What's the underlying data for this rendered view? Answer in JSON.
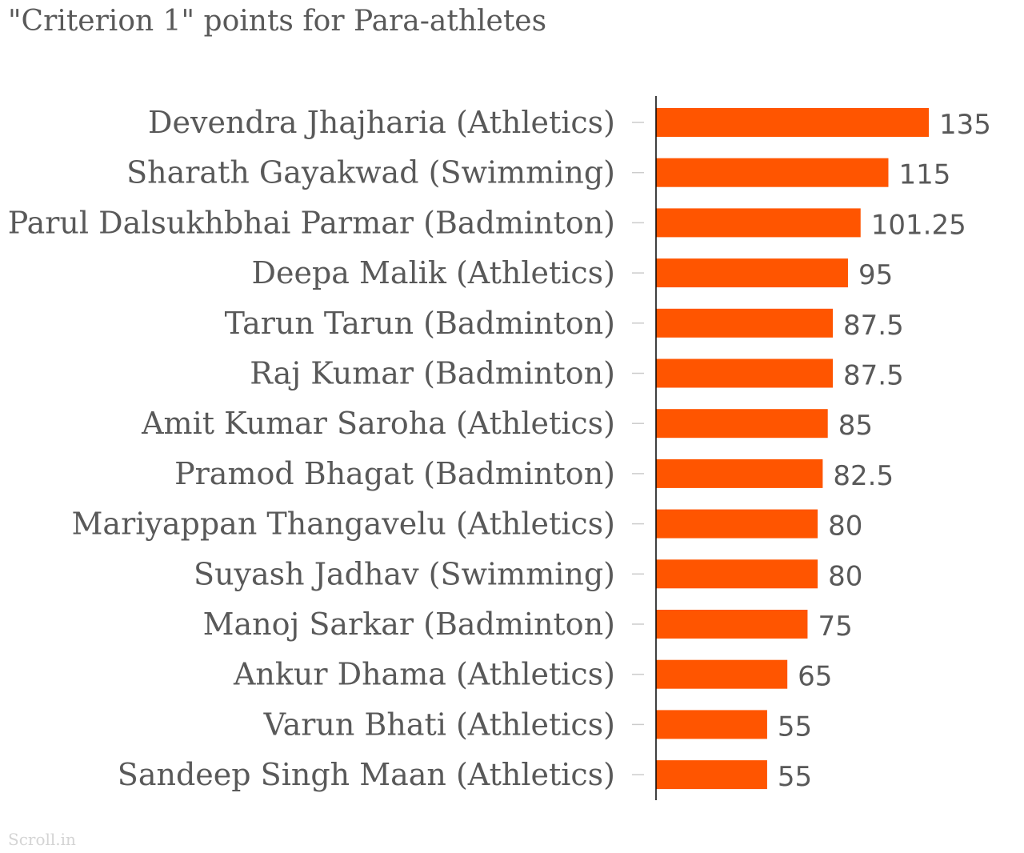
{
  "chart_data": {
    "type": "bar",
    "orientation": "horizontal",
    "title": "\"Criterion 1\" points for Para-athletes",
    "xlabel": "",
    "ylabel": "",
    "categories": [
      "Devendra Jhajharia (Athletics)",
      "Sharath Gayakwad (Swimming)",
      "Parul Dalsukhbhai Parmar (Badminton)",
      "Deepa Malik (Athletics)",
      "Tarun Tarun (Badminton)",
      "Raj Kumar (Badminton)",
      "Amit Kumar Saroha (Athletics)",
      "Pramod Bhagat (Badminton)",
      "Mariyappan Thangavelu (Athletics)",
      "Suyash Jadhav (Swimming)",
      "Manoj Sarkar (Badminton)",
      "Ankur Dhama (Athletics)",
      "Varun Bhati (Athletics)",
      "Sandeep Singh Maan (Athletics)"
    ],
    "values": [
      135,
      115,
      101.25,
      95,
      87.5,
      87.5,
      85,
      82.5,
      80,
      80,
      75,
      65,
      55,
      55
    ],
    "value_labels": [
      "135",
      "115",
      "101.25",
      "95",
      "87.5",
      "87.5",
      "85",
      "82.5",
      "80",
      "80",
      "75",
      "65",
      "55",
      "55"
    ],
    "xlim": [
      0,
      135
    ],
    "grid": false,
    "bar_color": "#ff5500",
    "axis_color": "#000000",
    "tick_color": "#cccccc"
  },
  "source": "Scroll.in"
}
